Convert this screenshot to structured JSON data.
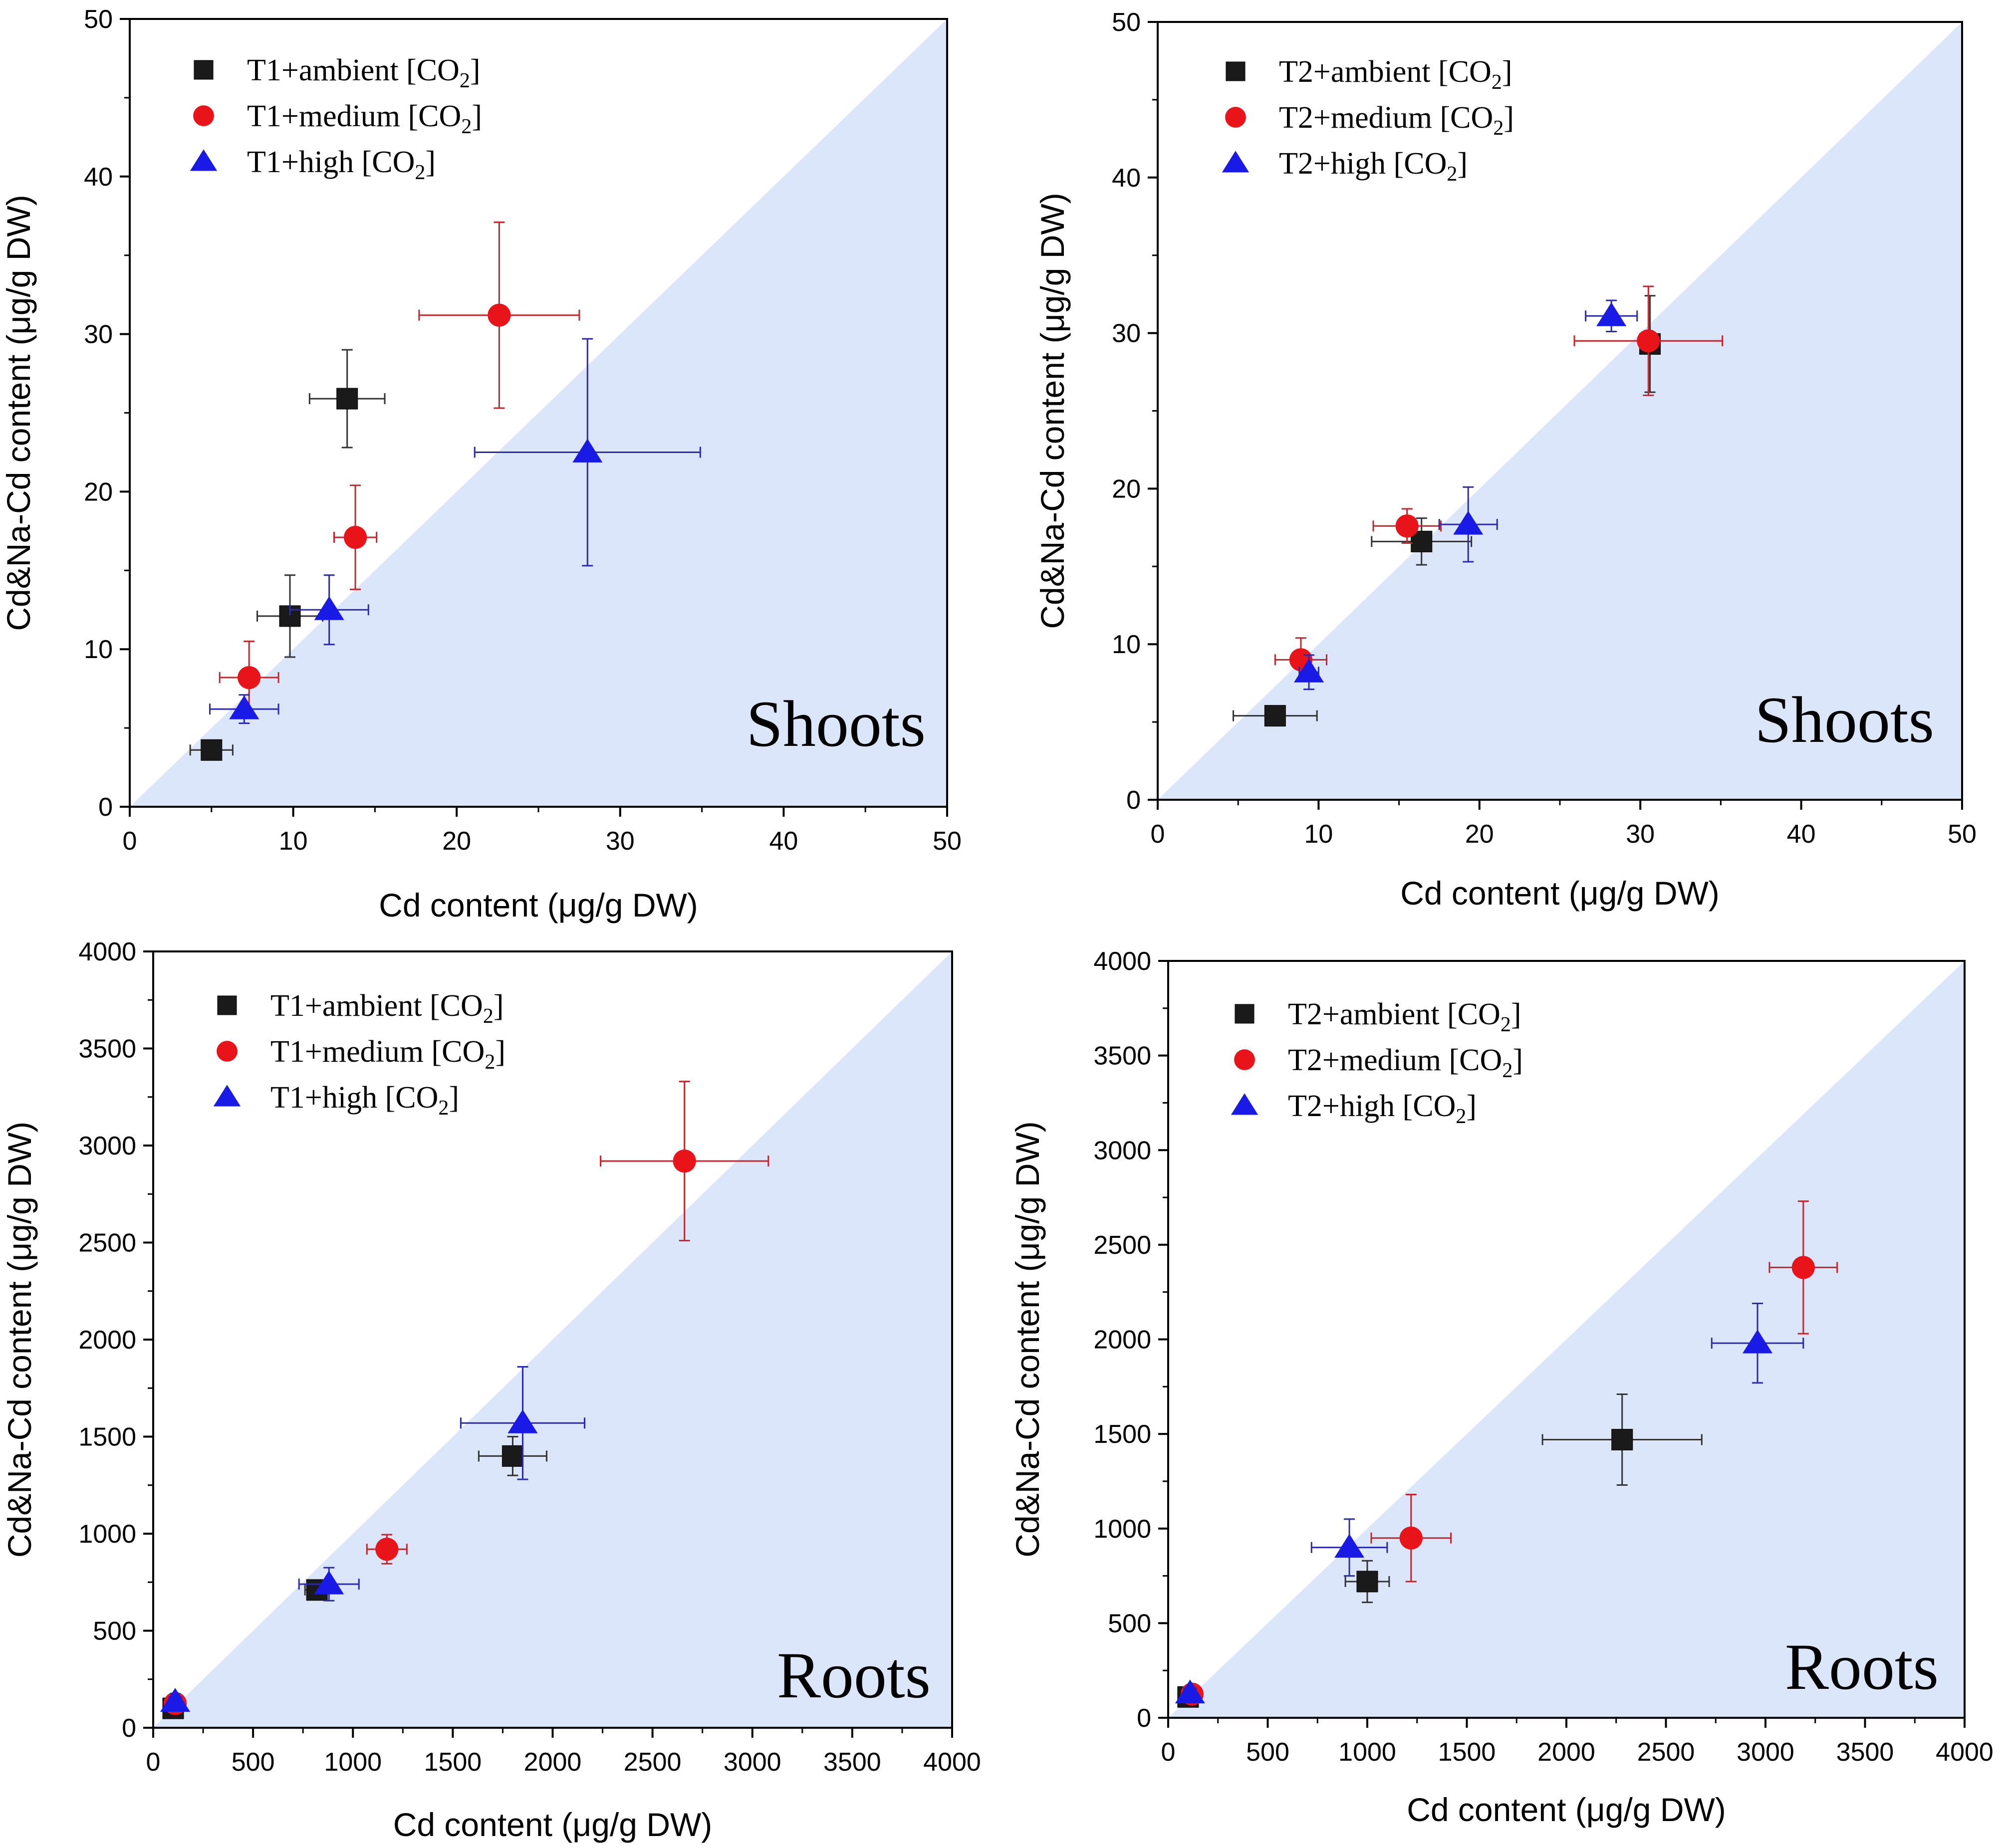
{
  "colors": {
    "region_fill": "#dce6fa",
    "ambient": "#1a1a1a",
    "medium": "#e8141a",
    "high": "#1a1ae6",
    "ambient_err": "#333333",
    "medium_err": "#c0262c",
    "high_err": "#2a2ab0"
  },
  "chart_data": [
    {
      "type": "scatter",
      "panel": "top-left",
      "tag": "Shoots",
      "xlabel": "Cd content (μg/g DW)",
      "ylabel": "Cd&Na-Cd content (μg/g DW)",
      "xlim": [
        0,
        50
      ],
      "ylim": [
        0,
        50
      ],
      "ticks": [
        0,
        10,
        20,
        30,
        40,
        50
      ],
      "tick_labels": [
        "0",
        "10",
        "20",
        "30",
        "40",
        "50"
      ],
      "shaded_region": "below y = x",
      "legend_position": "top-left",
      "series": [
        {
          "name": "T1+ambient [CO2]",
          "label_main": "T1+ambient [CO",
          "label_sub": "2",
          "label_end": "]",
          "marker": "square",
          "color_key": "ambient",
          "points": [
            {
              "x": 5.0,
              "y": 3.6,
              "xerr": 1.3,
              "yerr": 0.4
            },
            {
              "x": 9.8,
              "y": 12.1,
              "xerr": 2.0,
              "yerr": 2.6
            },
            {
              "x": 13.3,
              "y": 25.9,
              "xerr": 2.3,
              "yerr": 3.1
            }
          ]
        },
        {
          "name": "T1+medium [CO2]",
          "label_main": "T1+medium [CO",
          "label_sub": "2",
          "label_end": "]",
          "marker": "circle",
          "color_key": "medium",
          "points": [
            {
              "x": 7.3,
              "y": 8.2,
              "xerr": 1.8,
              "yerr": 2.3
            },
            {
              "x": 13.8,
              "y": 17.1,
              "xerr": 1.3,
              "yerr": 3.3
            },
            {
              "x": 22.6,
              "y": 31.2,
              "xerr": 4.9,
              "yerr": 5.9
            }
          ]
        },
        {
          "name": "T1+high [CO2]",
          "label_main": "T1+high [CO",
          "label_sub": "2",
          "label_end": "]",
          "marker": "triangle",
          "color_key": "high",
          "points": [
            {
              "x": 7.0,
              "y": 6.2,
              "xerr": 2.1,
              "yerr": 0.9
            },
            {
              "x": 12.2,
              "y": 12.5,
              "xerr": 2.4,
              "yerr": 2.2
            },
            {
              "x": 28.0,
              "y": 22.5,
              "xerr": 6.9,
              "yerr": 7.2
            }
          ]
        }
      ]
    },
    {
      "type": "scatter",
      "panel": "top-right",
      "tag": "Shoots",
      "xlabel": "Cd content (μg/g DW)",
      "ylabel": "Cd&Na-Cd content (μg/g DW)",
      "xlim": [
        0,
        50
      ],
      "ylim": [
        0,
        50
      ],
      "ticks": [
        0,
        10,
        20,
        30,
        40,
        50
      ],
      "tick_labels": [
        "0",
        "10",
        "20",
        "30",
        "40",
        "50"
      ],
      "shaded_region": "below y = x",
      "legend_position": "top-left",
      "series": [
        {
          "name": "T2+ambient [CO2]",
          "label_main": "T2+ambient [CO",
          "label_sub": "2",
          "label_end": "]",
          "marker": "square",
          "color_key": "ambient",
          "points": [
            {
              "x": 7.3,
              "y": 5.4,
              "xerr": 2.6,
              "yerr": 0.6
            },
            {
              "x": 16.4,
              "y": 16.6,
              "xerr": 3.1,
              "yerr": 1.5
            },
            {
              "x": 30.6,
              "y": 29.3,
              "xerr": 0.5,
              "yerr": 3.1
            }
          ]
        },
        {
          "name": "T2+medium [CO2]",
          "label_main": "T2+medium [CO",
          "label_sub": "2",
          "label_end": "]",
          "marker": "circle",
          "color_key": "medium",
          "points": [
            {
              "x": 8.9,
              "y": 9.0,
              "xerr": 1.6,
              "yerr": 1.4
            },
            {
              "x": 15.5,
              "y": 17.6,
              "xerr": 2.1,
              "yerr": 1.1
            },
            {
              "x": 30.5,
              "y": 29.5,
              "xerr": 4.6,
              "yerr": 3.5
            }
          ]
        },
        {
          "name": "T2+high [CO2]",
          "label_main": "T2+high [CO",
          "label_sub": "2",
          "label_end": "]",
          "marker": "triangle",
          "color_key": "high",
          "points": [
            {
              "x": 9.4,
              "y": 8.2,
              "xerr": 0.6,
              "yerr": 1.1
            },
            {
              "x": 19.3,
              "y": 17.7,
              "xerr": 1.8,
              "yerr": 2.4
            },
            {
              "x": 28.2,
              "y": 31.1,
              "xerr": 1.6,
              "yerr": 1.0
            }
          ]
        }
      ]
    },
    {
      "type": "scatter",
      "panel": "bottom-left",
      "tag": "Roots",
      "xlabel": "Cd content (μg/g DW)",
      "ylabel": "Cd&Na-Cd content (μg/g DW)",
      "xlim": [
        0,
        4000
      ],
      "ylim": [
        0,
        4000
      ],
      "ticks": [
        0,
        500,
        1000,
        1500,
        2000,
        2500,
        3000,
        3500,
        4000
      ],
      "tick_labels": [
        "0",
        "500",
        "1000",
        "1500",
        "2000",
        "2500",
        "3000",
        "3500",
        "4000"
      ],
      "shaded_region": "below y = x",
      "legend_position": "top-left",
      "series": [
        {
          "name": "T1+ambient [CO2]",
          "label_main": "T1+ambient [CO",
          "label_sub": "2",
          "label_end": "]",
          "marker": "square",
          "color_key": "ambient",
          "points": [
            {
              "x": 100,
              "y": 100,
              "xerr": 30,
              "yerr": 30
            },
            {
              "x": 820,
              "y": 710,
              "xerr": 60,
              "yerr": 40
            },
            {
              "x": 1800,
              "y": 1400,
              "xerr": 170,
              "yerr": 100
            }
          ]
        },
        {
          "name": "T1+medium [CO2]",
          "label_main": "T1+medium [CO",
          "label_sub": "2",
          "label_end": "]",
          "marker": "circle",
          "color_key": "medium",
          "points": [
            {
              "x": 110,
              "y": 125,
              "xerr": 30,
              "yerr": 30
            },
            {
              "x": 1170,
              "y": 920,
              "xerr": 100,
              "yerr": 75
            },
            {
              "x": 2660,
              "y": 2920,
              "xerr": 420,
              "yerr": 410
            }
          ]
        },
        {
          "name": "T1+high [CO2]",
          "label_main": "T1+high [CO",
          "label_sub": "2",
          "label_end": "]",
          "marker": "triangle",
          "color_key": "high",
          "points": [
            {
              "x": 110,
              "y": 135,
              "xerr": 30,
              "yerr": 40
            },
            {
              "x": 880,
              "y": 740,
              "xerr": 150,
              "yerr": 85
            },
            {
              "x": 1850,
              "y": 1570,
              "xerr": 310,
              "yerr": 290
            }
          ]
        }
      ]
    },
    {
      "type": "scatter",
      "panel": "bottom-right",
      "tag": "Roots",
      "xlabel": "Cd content (μg/g DW)",
      "ylabel": "Cd&Na-Cd content (μg/g DW)",
      "xlim": [
        0,
        4000
      ],
      "ylim": [
        0,
        4000
      ],
      "ticks": [
        0,
        500,
        1000,
        1500,
        2000,
        2500,
        3000,
        3500,
        4000
      ],
      "tick_labels": [
        "0",
        "500",
        "1000",
        "1500",
        "2000",
        "2500",
        "3000",
        "3500",
        "4000"
      ],
      "shaded_region": "below y = x",
      "legend_position": "top-left",
      "series": [
        {
          "name": "T2+ambient [CO2]",
          "label_main": "T2+ambient [CO",
          "label_sub": "2",
          "label_end": "]",
          "marker": "square",
          "color_key": "ambient",
          "points": [
            {
              "x": 100,
              "y": 110,
              "xerr": 30,
              "yerr": 30
            },
            {
              "x": 1000,
              "y": 720,
              "xerr": 110,
              "yerr": 110
            },
            {
              "x": 2280,
              "y": 1470,
              "xerr": 400,
              "yerr": 240
            }
          ]
        },
        {
          "name": "T2+medium [CO2]",
          "label_main": "T2+medium [CO",
          "label_sub": "2",
          "label_end": "]",
          "marker": "circle",
          "color_key": "medium",
          "points": [
            {
              "x": 120,
              "y": 125,
              "xerr": 30,
              "yerr": 30
            },
            {
              "x": 1220,
              "y": 950,
              "xerr": 200,
              "yerr": 230
            },
            {
              "x": 3190,
              "y": 2380,
              "xerr": 170,
              "yerr": 350
            }
          ]
        },
        {
          "name": "T2+high [CO2]",
          "label_main": "T2+high [CO",
          "label_sub": "2",
          "label_end": "]",
          "marker": "triangle",
          "color_key": "high",
          "points": [
            {
              "x": 110,
              "y": 130,
              "xerr": 30,
              "yerr": 30
            },
            {
              "x": 910,
              "y": 900,
              "xerr": 190,
              "yerr": 150
            },
            {
              "x": 2960,
              "y": 1980,
              "xerr": 230,
              "yerr": 210
            }
          ]
        }
      ]
    }
  ]
}
